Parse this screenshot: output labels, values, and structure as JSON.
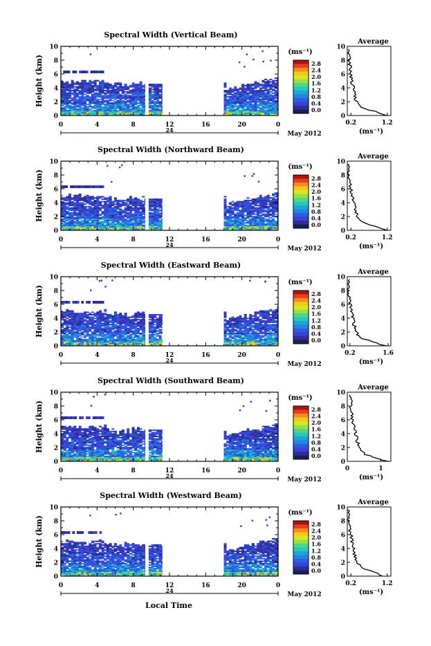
{
  "figure": {
    "date_label": "May 2012",
    "day_label": "24",
    "xlabel": "Local Time",
    "avg_title": "Average",
    "avg_xlabel": "(ms⁻¹)",
    "cbar_unit": "(ms⁻¹)",
    "colorbar_ticks": [
      "2.8",
      "2.4",
      "2.0",
      "1.6",
      "1.2",
      "0.8",
      "0.4",
      "0.0"
    ],
    "colorbar_colors": [
      "#b01212",
      "#e8401e",
      "#f48c22",
      "#f2c81c",
      "#d8e81a",
      "#96e046",
      "#52d686",
      "#26c8b8",
      "#1aa6d8",
      "#2684e0",
      "#2a5ee0",
      "#3a40d8",
      "#2c2f96",
      "#1a1f55"
    ]
  },
  "chart_data": [
    {
      "type": "heatmap",
      "title": "Spectral Width (Vertical Beam)",
      "xlabel": "",
      "ylabel": "Height (km)",
      "xlim": [
        0,
        24
      ],
      "ylim": [
        0,
        10
      ],
      "xticks": [
        "0",
        "4",
        "8",
        "12",
        "16",
        "20",
        "0"
      ],
      "yticks": [
        "0",
        "2",
        "4",
        "6",
        "8",
        "10"
      ],
      "data_coverage_hours": [
        [
          0,
          9.3
        ],
        [
          9.7,
          11.2
        ],
        [
          18.0,
          24.0
        ]
      ],
      "average_profile": {
        "xlim": [
          0.1,
          1.3
        ],
        "xticks": [
          "0.2",
          "1.2"
        ],
        "x": [
          1.15,
          0.95,
          0.55,
          0.45,
          0.35,
          0.3,
          0.28,
          0.22,
          0.2,
          0.18,
          0.15
        ],
        "height": [
          0,
          0.5,
          1,
          1.5,
          2,
          3,
          4,
          5,
          6,
          7,
          8
        ]
      }
    },
    {
      "type": "heatmap",
      "title": "Spectral Width (Northward Beam)",
      "xlabel": "",
      "ylabel": "Height (km)",
      "xlim": [
        0,
        24
      ],
      "ylim": [
        0,
        10
      ],
      "xticks": [
        "0",
        "4",
        "8",
        "12",
        "16",
        "20",
        "0"
      ],
      "yticks": [
        "0",
        "2",
        "4",
        "6",
        "8",
        "10"
      ],
      "data_coverage_hours": [
        [
          0,
          9.3
        ],
        [
          9.7,
          11.2
        ],
        [
          18.0,
          24.0
        ]
      ],
      "average_profile": {
        "xlim": [
          0.1,
          1.3
        ],
        "xticks": [
          "0.2",
          "1.2"
        ],
        "x": [
          1.2,
          0.9,
          0.6,
          0.45,
          0.38,
          0.32,
          0.28,
          0.24,
          0.2,
          0.16,
          0.12
        ],
        "height": [
          0,
          0.5,
          1,
          1.5,
          2,
          3,
          4,
          5,
          6,
          7,
          8
        ]
      }
    },
    {
      "type": "heatmap",
      "title": "Spectral Width (Eastward Beam)",
      "xlabel": "",
      "ylabel": "Height (km)",
      "xlim": [
        0,
        24
      ],
      "ylim": [
        0,
        10
      ],
      "xticks": [
        "0",
        "4",
        "8",
        "12",
        "16",
        "20",
        "0"
      ],
      "yticks": [
        "0",
        "2",
        "4",
        "6",
        "8",
        "10"
      ],
      "data_coverage_hours": [
        [
          0,
          9.3
        ],
        [
          9.7,
          11.2
        ],
        [
          18.0,
          24.0
        ]
      ],
      "average_profile": {
        "xlim": [
          0.1,
          1.7
        ],
        "xticks": [
          "0.2",
          "1.6"
        ],
        "x": [
          1.5,
          1.1,
          0.7,
          0.5,
          0.42,
          0.35,
          0.3,
          0.25,
          0.22,
          0.18,
          0.15
        ],
        "height": [
          0,
          0.5,
          1,
          1.5,
          2,
          3,
          4,
          5,
          6,
          7,
          8
        ]
      }
    },
    {
      "type": "heatmap",
      "title": "Spectral Width (Southward Beam)",
      "xlabel": "",
      "ylabel": "Height (km)",
      "xlim": [
        0,
        24
      ],
      "ylim": [
        0,
        10
      ],
      "xticks": [
        "0",
        "4",
        "8",
        "12",
        "16",
        "20",
        "0"
      ],
      "yticks": [
        "0",
        "2",
        "4",
        "6",
        "8",
        "10"
      ],
      "data_coverage_hours": [
        [
          0,
          9.3
        ],
        [
          9.7,
          11.2
        ],
        [
          18.0,
          24.0
        ]
      ],
      "average_profile": {
        "xlim": [
          0,
          1.3
        ],
        "xticks": [
          "0",
          "1"
        ],
        "x": [
          1.2,
          0.85,
          0.55,
          0.42,
          0.35,
          0.3,
          0.25,
          0.2,
          0.15,
          0.12,
          0.1
        ],
        "height": [
          0,
          0.5,
          1,
          1.5,
          2,
          3,
          4,
          5,
          6,
          7,
          8
        ]
      }
    },
    {
      "type": "heatmap",
      "title": "Spectral Width (Westward Beam)",
      "xlabel": "",
      "ylabel": "Height (km)",
      "xlim": [
        0,
        24
      ],
      "ylim": [
        0,
        10
      ],
      "xticks": [
        "0",
        "4",
        "8",
        "12",
        "16",
        "20",
        "0"
      ],
      "yticks": [
        "0",
        "2",
        "4",
        "6",
        "8",
        "10"
      ],
      "data_coverage_hours": [
        [
          0,
          9.3
        ],
        [
          9.7,
          11.2
        ],
        [
          18.0,
          24.0
        ]
      ],
      "average_profile": {
        "xlim": [
          0.1,
          1.3
        ],
        "xticks": [
          "0.2",
          "1.2"
        ],
        "x": [
          1.1,
          0.9,
          0.6,
          0.45,
          0.36,
          0.3,
          0.27,
          0.23,
          0.2,
          0.16,
          0.13
        ],
        "height": [
          0,
          0.5,
          1,
          1.5,
          2,
          3,
          4,
          5,
          6,
          7,
          8
        ]
      }
    }
  ]
}
